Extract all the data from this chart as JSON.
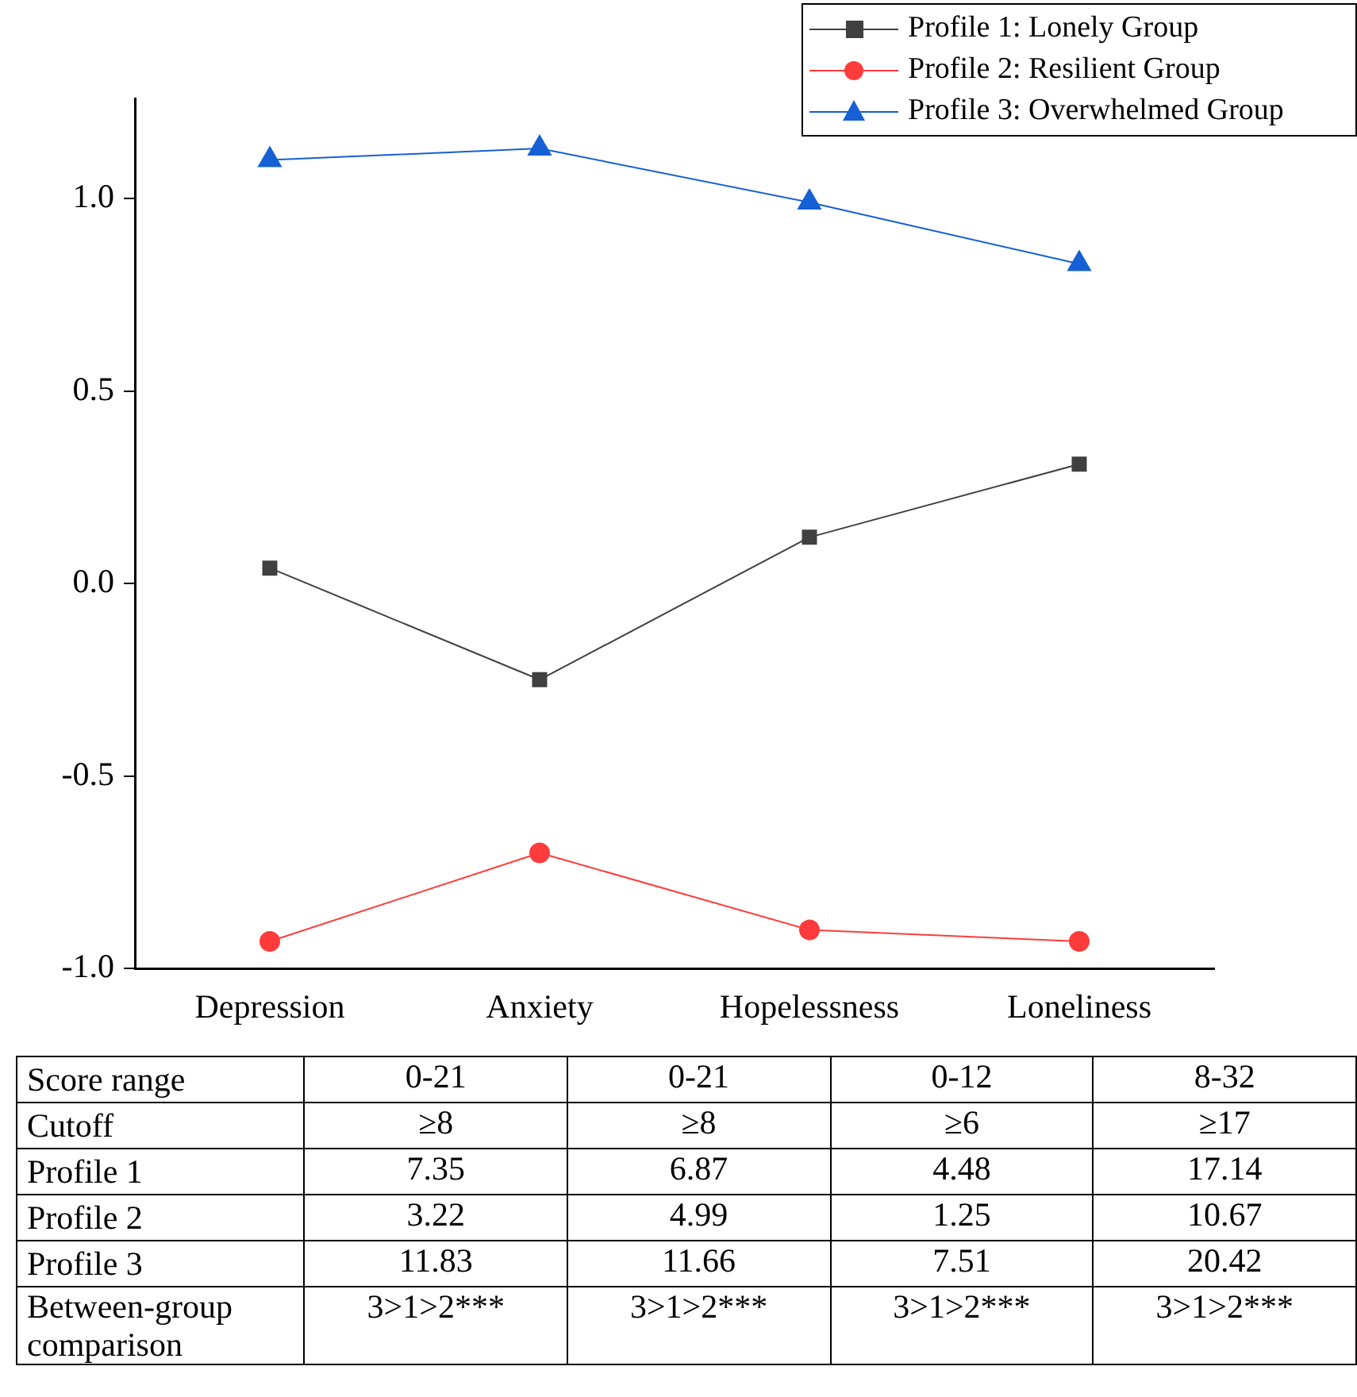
{
  "chart_data": [
    {
      "type": "line",
      "categories": [
        "Depression",
        "Anxiety",
        "Hopelessness",
        "Loneliness"
      ],
      "series": [
        {
          "name": "Profile 1: Lonely Group",
          "color": "#404040",
          "marker": "square",
          "values": [
            0.04,
            -0.25,
            0.12,
            0.31
          ]
        },
        {
          "name": "Profile 2: Resilient Group",
          "color": "#ff3b3b",
          "marker": "circle",
          "values": [
            -0.93,
            -0.7,
            -0.9,
            -0.93
          ]
        },
        {
          "name": "Profile 3: Overwhelmed Group",
          "color": "#1560d4",
          "marker": "triangle",
          "values": [
            1.1,
            1.13,
            0.99,
            0.83
          ]
        }
      ],
      "ylim": [
        -1,
        1.26
      ],
      "yticks": [
        {
          "value": -1,
          "label": "-1.0"
        },
        {
          "value": -0.5,
          "label": "-0.5"
        },
        {
          "value": 0,
          "label": "0.0"
        },
        {
          "value": 0.5,
          "label": "0.5"
        },
        {
          "value": 1,
          "label": "1.0"
        }
      ],
      "grid": false,
      "legend": "top right"
    },
    {
      "type": "heatmap",
      "categories": [
        null,
        null,
        null,
        null
      ],
      "y_categories": [
        "Score range",
        "Cutoff",
        "Profile 1",
        "Profile 2",
        "Profile 3",
        "Between-group comparison"
      ],
      "cells": [
        [
          null,
          null,
          null,
          null
        ],
        [
          null,
          null,
          null,
          null
        ],
        [
          null,
          null,
          null,
          null
        ],
        [
          null,
          null,
          null,
          null
        ],
        [
          null,
          null,
          null,
          null
        ],
        [
          null,
          null,
          null,
          null
        ]
      ],
      "cell_labels": [
        [
          "0-21",
          "0-21",
          "0-12",
          "8-32"
        ],
        [
          "≥8",
          "≥8",
          "≥6",
          "≥17"
        ],
        [
          "7.35",
          "6.87",
          "4.48",
          "17.14"
        ],
        [
          "3.22",
          "4.99",
          "1.25",
          "10.67"
        ],
        [
          "11.83",
          "11.66",
          "7.51",
          "20.42"
        ],
        [
          "3>1>2***",
          "3>1>2***",
          "3>1>2***",
          "3>1>2***"
        ]
      ]
    }
  ]
}
